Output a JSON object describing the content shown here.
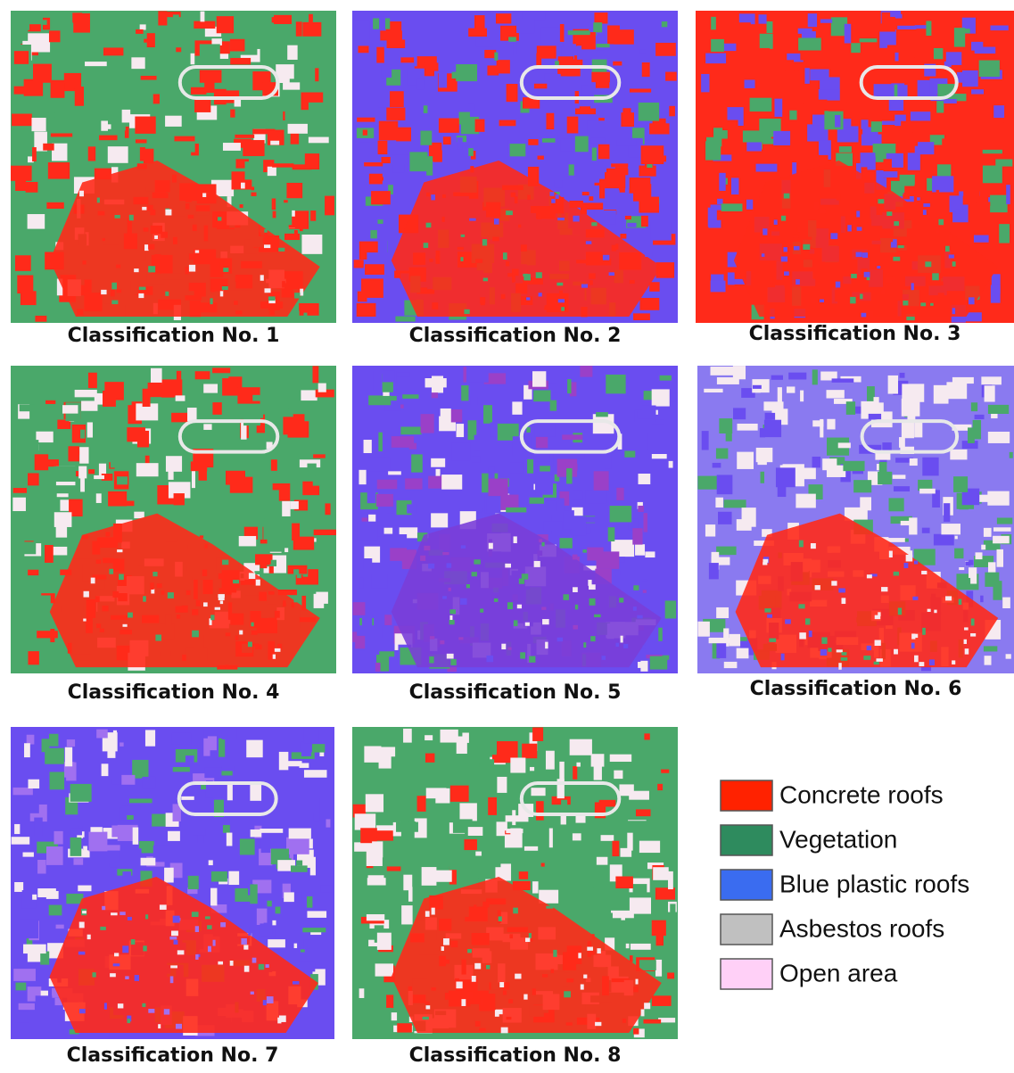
{
  "panels": [
    {
      "caption": "Classification No. 1"
    },
    {
      "caption": "Classification No. 2"
    },
    {
      "caption": "Classification No. 3"
    },
    {
      "caption": "Classification No. 4"
    },
    {
      "caption": "Classification No. 5"
    },
    {
      "caption": "Classification No. 6"
    },
    {
      "caption": "Classification No. 7"
    },
    {
      "caption": "Classification No. 8"
    }
  ],
  "legend": [
    {
      "label": "Concrete roofs",
      "color": "#ff2200"
    },
    {
      "label": "Vegetation",
      "color": "#2e8b5e"
    },
    {
      "label": "Blue plastic roofs",
      "color": "#3a6cf0"
    },
    {
      "label": "Asbestos roofs",
      "color": "#c0c0c0"
    },
    {
      "label": "Open area",
      "color": "#ffd0f7"
    }
  ]
}
